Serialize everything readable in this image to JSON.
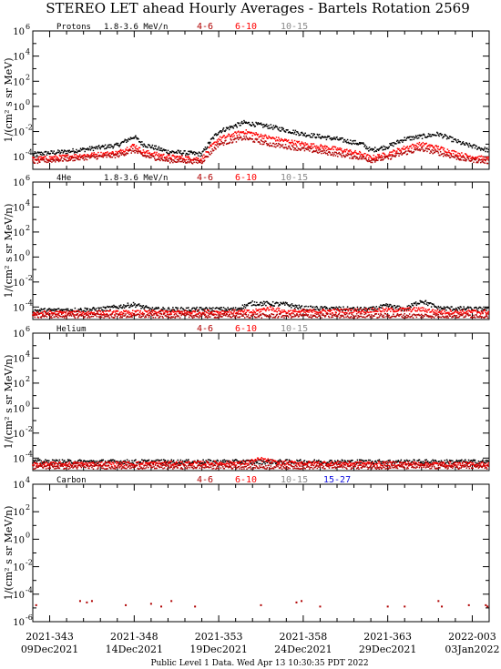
{
  "title": "STEREO LET ahead Hourly Averages - Bartels Rotation 2569",
  "footer": "Public Level 1 Data. Wed Apr 13 10:30:35 PDT 2022",
  "colors": {
    "black": "#000000",
    "dark_red": "#b00000",
    "red": "#ff0000",
    "gray": "#8a8a8a",
    "blue": "#1010e0"
  },
  "x_ticks": [
    {
      "doy": "2021-343",
      "date": "09Dec2021"
    },
    {
      "doy": "2021-348",
      "date": "14Dec2021"
    },
    {
      "doy": "2021-353",
      "date": "19Dec2021"
    },
    {
      "doy": "2021-358",
      "date": "24Dec2021"
    },
    {
      "doy": "2021-363",
      "date": "29Dec2021"
    },
    {
      "doy": "2022-003",
      "date": "03Jan2022"
    }
  ],
  "chart_data": [
    {
      "type": "scatter",
      "species": "Protons",
      "energy": "1.8-3.6 MeV/n",
      "ylabel": "1/(cm² s sr MeV)",
      "ylim_log10": [
        -5,
        6
      ],
      "yticks": [
        "10^6",
        "10^4",
        "10^2",
        "10^0",
        "10^-2",
        "10^-4"
      ],
      "xlim_days": [
        0,
        27
      ],
      "legend": [
        {
          "label": "4-6",
          "color": "dark_red"
        },
        {
          "label": "6-10",
          "color": "red"
        },
        {
          "label": "10-15",
          "color": "gray"
        }
      ],
      "series": [
        {
          "color": "black",
          "profile": [
            [
              0,
              -3.8
            ],
            [
              2,
              -3.6
            ],
            [
              5,
              -3.1
            ],
            [
              6,
              -2.4
            ],
            [
              6.5,
              -3.0
            ],
            [
              8,
              -3.6
            ],
            [
              10,
              -3.8
            ],
            [
              10.5,
              -2.8
            ],
            [
              11,
              -2.0
            ],
            [
              12.5,
              -1.3
            ],
            [
              14,
              -1.6
            ],
            [
              16,
              -2.2
            ],
            [
              18,
              -2.6
            ],
            [
              19.5,
              -3.0
            ],
            [
              20,
              -3.5
            ],
            [
              21,
              -3.2
            ],
            [
              22,
              -2.6
            ],
            [
              24,
              -2.2
            ],
            [
              25.5,
              -3.0
            ],
            [
              27,
              -3.5
            ]
          ]
        },
        {
          "color": "red",
          "profile": [
            [
              0,
              -4.2
            ],
            [
              2,
              -4.0
            ],
            [
              5,
              -3.7
            ],
            [
              6,
              -3.1
            ],
            [
              6.5,
              -3.6
            ],
            [
              8,
              -4.0
            ],
            [
              10,
              -4.2
            ],
            [
              10.5,
              -3.3
            ],
            [
              11,
              -2.6
            ],
            [
              12.5,
              -2.0
            ],
            [
              14,
              -2.5
            ],
            [
              16,
              -3.0
            ],
            [
              18,
              -3.4
            ],
            [
              19.5,
              -3.8
            ],
            [
              20,
              -4.1
            ],
            [
              21,
              -3.8
            ],
            [
              22,
              -3.3
            ],
            [
              23,
              -3.0
            ],
            [
              24,
              -3.3
            ],
            [
              25.5,
              -3.9
            ],
            [
              27,
              -4.2
            ]
          ]
        },
        {
          "color": "dark_red",
          "profile": [
            [
              0,
              -4.4
            ],
            [
              2,
              -4.2
            ],
            [
              5,
              -3.9
            ],
            [
              6,
              -3.5
            ],
            [
              6.5,
              -3.9
            ],
            [
              8,
              -4.3
            ],
            [
              10,
              -4.4
            ],
            [
              10.5,
              -3.7
            ],
            [
              11,
              -3.0
            ],
            [
              12.5,
              -2.5
            ],
            [
              14,
              -3.0
            ],
            [
              16,
              -3.4
            ],
            [
              18,
              -3.8
            ],
            [
              19.5,
              -4.1
            ],
            [
              20,
              -4.3
            ],
            [
              21,
              -4.1
            ],
            [
              22,
              -3.7
            ],
            [
              23,
              -3.4
            ],
            [
              24,
              -3.7
            ],
            [
              25.5,
              -4.2
            ],
            [
              27,
              -4.4
            ]
          ]
        }
      ]
    },
    {
      "type": "scatter",
      "species": "4He",
      "energy": "1.8-3.6 MeV/n",
      "ylabel": "1/(cm² s sr MeV/n)",
      "ylim_log10": [
        -5,
        6
      ],
      "yticks": [
        "10^6",
        "10^4",
        "10^2",
        "10^0",
        "10^-2",
        "10^-4"
      ],
      "xlim_days": [
        0,
        27
      ],
      "legend": [
        {
          "label": "4-6",
          "color": "dark_red"
        },
        {
          "label": "6-10",
          "color": "red"
        },
        {
          "label": "10-15",
          "color": "gray"
        }
      ],
      "series": [
        {
          "color": "black",
          "profile": [
            [
              0,
              -4.3
            ],
            [
              4,
              -4.2
            ],
            [
              6,
              -3.8
            ],
            [
              7,
              -4.2
            ],
            [
              12,
              -4.2
            ],
            [
              13,
              -3.7
            ],
            [
              15,
              -3.8
            ],
            [
              16,
              -4.1
            ],
            [
              20,
              -4.2
            ],
            [
              21,
              -3.9
            ],
            [
              22,
              -4.2
            ],
            [
              23,
              -3.5
            ],
            [
              24,
              -4.1
            ],
            [
              27,
              -4.2
            ]
          ]
        },
        {
          "color": "red",
          "profile": [
            [
              0,
              -4.5
            ],
            [
              13,
              -4.4
            ],
            [
              14,
              -4.1
            ],
            [
              15,
              -4.4
            ],
            [
              23,
              -4.2
            ],
            [
              24,
              -4.4
            ],
            [
              27,
              -4.4
            ]
          ]
        },
        {
          "color": "dark_red",
          "profile": [
            [
              0,
              -4.7
            ],
            [
              27,
              -4.7
            ]
          ]
        }
      ]
    },
    {
      "type": "scatter",
      "species": "Helium",
      "energy": "",
      "ylabel": "1/(cm² s sr MeV/n)",
      "ylim_log10": [
        -5,
        6
      ],
      "yticks": [
        "10^6",
        "10^4",
        "10^2",
        "10^0",
        "10^-2",
        "10^-4"
      ],
      "xlim_days": [
        0,
        27
      ],
      "legend": [
        {
          "label": "4-6",
          "color": "dark_red"
        },
        {
          "label": "6-10",
          "color": "red"
        },
        {
          "label": "10-15",
          "color": "gray"
        }
      ],
      "series": [
        {
          "color": "black",
          "profile": [
            [
              0,
              -4.3
            ],
            [
              27,
              -4.3
            ]
          ]
        },
        {
          "color": "red",
          "profile": [
            [
              0,
              -4.5
            ],
            [
              12.5,
              -4.4
            ],
            [
              13.5,
              -4.1
            ],
            [
              14.5,
              -4.4
            ],
            [
              27,
              -4.5
            ]
          ]
        },
        {
          "color": "dark_red",
          "profile": [
            [
              0,
              -4.7
            ],
            [
              27,
              -4.7
            ]
          ]
        }
      ]
    },
    {
      "type": "scatter",
      "species": "Carbon",
      "energy": "",
      "ylabel": "1/(cm² s sr MeV/n)",
      "ylim_log10": [
        -6,
        4
      ],
      "yticks": [
        "10^4",
        "10^2",
        "10^0",
        "10^-2",
        "10^-4",
        "10^-6"
      ],
      "xlim_days": [
        0,
        27
      ],
      "legend": [
        {
          "label": "4-6",
          "color": "dark_red"
        },
        {
          "label": "6-10",
          "color": "red"
        },
        {
          "label": "10-15",
          "color": "gray"
        },
        {
          "label": "15-27",
          "color": "blue"
        }
      ],
      "points": [
        {
          "x": 0.2,
          "y": -4.8
        },
        {
          "x": 2.8,
          "y": -4.5
        },
        {
          "x": 3.2,
          "y": -4.6
        },
        {
          "x": 3.5,
          "y": -4.5
        },
        {
          "x": 5.5,
          "y": -4.8
        },
        {
          "x": 7.0,
          "y": -4.7
        },
        {
          "x": 7.6,
          "y": -4.9
        },
        {
          "x": 8.2,
          "y": -4.5
        },
        {
          "x": 9.6,
          "y": -4.9
        },
        {
          "x": 13.5,
          "y": -4.8
        },
        {
          "x": 15.6,
          "y": -4.6
        },
        {
          "x": 15.9,
          "y": -4.5
        },
        {
          "x": 17.0,
          "y": -4.9
        },
        {
          "x": 21.0,
          "y": -4.9
        },
        {
          "x": 22.0,
          "y": -4.9
        },
        {
          "x": 24.0,
          "y": -4.5
        },
        {
          "x": 24.2,
          "y": -4.9
        },
        {
          "x": 25.8,
          "y": -4.8
        },
        {
          "x": 26.8,
          "y": -4.8
        },
        {
          "x": 26.9,
          "y": -4.9
        }
      ]
    }
  ]
}
